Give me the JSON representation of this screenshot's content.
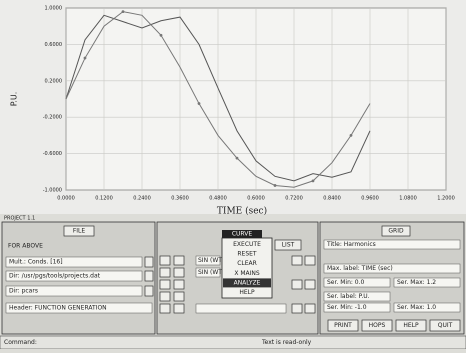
{
  "chart_data": {
    "type": "line",
    "x_label": "TIME (sec)",
    "y_label": "P.U.",
    "xlim": [
      0,
      1.2
    ],
    "ylim": [
      -1,
      1
    ],
    "grid": true,
    "xticks": [
      {
        "value": 0,
        "label": "0.0000"
      },
      {
        "value": 0.12,
        "label": "0.1200"
      },
      {
        "value": 0.24,
        "label": "0.2400"
      },
      {
        "value": 0.36,
        "label": "0.3600"
      },
      {
        "value": 0.48,
        "label": "0.4800"
      },
      {
        "value": 0.6,
        "label": "0.6000"
      },
      {
        "value": 0.72,
        "label": "0.7200"
      },
      {
        "value": 0.84,
        "label": "0.8400"
      },
      {
        "value": 0.96,
        "label": "0.9600"
      },
      {
        "value": 1.08,
        "label": "1.0800"
      },
      {
        "value": 1.2,
        "label": "1.2000"
      }
    ],
    "yticks": [
      {
        "value": 1,
        "label": "1.0000"
      },
      {
        "value": 0.6,
        "label": "0.6000"
      },
      {
        "value": 0.2,
        "label": "0.2000"
      },
      {
        "value": -0.2,
        "label": "-0.2000"
      },
      {
        "value": -0.6,
        "label": "-0.6000"
      },
      {
        "value": -1,
        "label": "-1.0000"
      }
    ],
    "x": [
      0,
      0.06,
      0.12,
      0.18,
      0.24,
      0.3,
      0.36,
      0.42,
      0.48,
      0.54,
      0.6,
      0.66,
      0.72,
      0.78,
      0.84,
      0.9,
      0.96
    ],
    "series": [
      {
        "color": "#555555",
        "markers": false,
        "values": [
          0,
          0.65,
          0.92,
          0.85,
          0.78,
          0.86,
          0.9,
          0.6,
          0.12,
          -0.35,
          -0.68,
          -0.85,
          -0.9,
          -0.82,
          -0.86,
          -0.8,
          -0.35
        ]
      },
      {
        "color": "#777777",
        "markers": true,
        "values": [
          0,
          0.45,
          0.8,
          0.96,
          0.92,
          0.7,
          0.35,
          -0.05,
          -0.4,
          -0.65,
          -0.85,
          -0.95,
          -0.97,
          -0.9,
          -0.7,
          -0.4,
          -0.05
        ]
      }
    ]
  },
  "window_label": "PROJECT 1.1",
  "file_panel": {
    "title": "FILE",
    "heading": "FOR ABOVE",
    "rows": [
      "Mult.: Conds. [16]",
      "Dir: /usr/pgs/tools/projects.dat",
      "Dir: pcars"
    ],
    "footer": "Header: FUNCTION GENERATION"
  },
  "curve_panel": {
    "title": "CURVE",
    "items": [
      "EXECUTE",
      "RESET",
      "CLEAR",
      "X MAINS",
      "ANALYZE",
      "HELP"
    ],
    "list_button": "LIST",
    "rows": [
      "SIN (WT)",
      "SIN (WT)"
    ]
  },
  "grid_panel": {
    "title": "GRID",
    "rows": [
      "Title: Harmonics",
      "Max. label: TIME (sec)",
      "Ser. Min: 0.0",
      "Ser. Max: 1.2",
      "Ser. label: P.U.",
      "Ser. Min: -1.0",
      "Ser. Max: 1.0"
    ]
  },
  "buttons": [
    "PRINT",
    "HOPS",
    "HELP",
    "QUIT"
  ],
  "status": {
    "prompt": "Command:",
    "message": "Text is read-only"
  }
}
